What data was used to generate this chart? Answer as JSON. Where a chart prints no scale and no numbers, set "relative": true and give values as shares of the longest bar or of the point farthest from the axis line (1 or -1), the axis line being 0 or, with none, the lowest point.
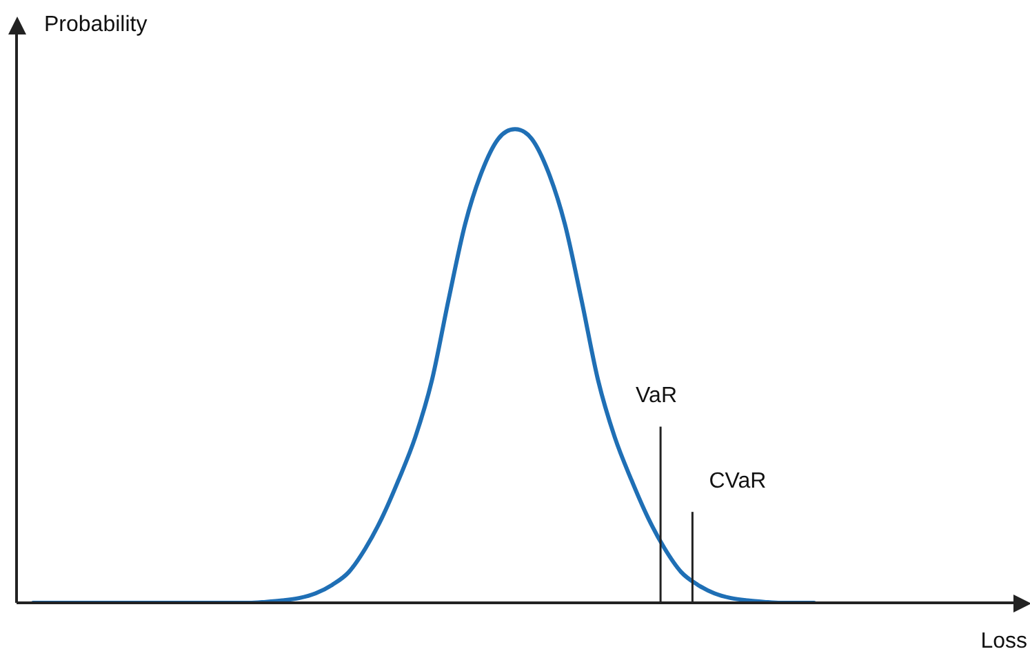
{
  "chart_data": {
    "type": "line",
    "relative": true,
    "xlabel": "Loss",
    "ylabel": "Probability",
    "categories": [
      null,
      null,
      null,
      null,
      null,
      null,
      null,
      null,
      null,
      null,
      null,
      null,
      null,
      null,
      null,
      null,
      null,
      null,
      null,
      null,
      null,
      null,
      null,
      null,
      null,
      null,
      null,
      null,
      null,
      null,
      null,
      null,
      null,
      null,
      null,
      null,
      null,
      null,
      null,
      null,
      null,
      null,
      null,
      null,
      null,
      null,
      null,
      null,
      null,
      null,
      null,
      null,
      null,
      null,
      null,
      null,
      null,
      null,
      null,
      null,
      null
    ],
    "series": [
      {
        "color": "#1f6fb5",
        "values": [
          null,
          0,
          0,
          0,
          0,
          0,
          0,
          0,
          0,
          0,
          0,
          0,
          0,
          0,
          0,
          0.002,
          0.005,
          0.01,
          0.02,
          0.038,
          0.065,
          0.115,
          0.18,
          0.26,
          0.35,
          0.47,
          0.64,
          0.8,
          0.91,
          0.98,
          1,
          0.98,
          0.91,
          0.8,
          0.64,
          0.47,
          0.35,
          0.26,
          0.18,
          0.115,
          0.065,
          0.038,
          0.02,
          0.01,
          0.005,
          0.002,
          0,
          0,
          0,
          null,
          null,
          null,
          null,
          null,
          null,
          null,
          null,
          null,
          null,
          null,
          null
        ]
      }
    ],
    "annotations": [
      "VaR",
      "CVaR"
    ],
    "legend": false,
    "grid": false,
    "marker": "none",
    "line_style": "solid",
    "tick_labels": false
  }
}
